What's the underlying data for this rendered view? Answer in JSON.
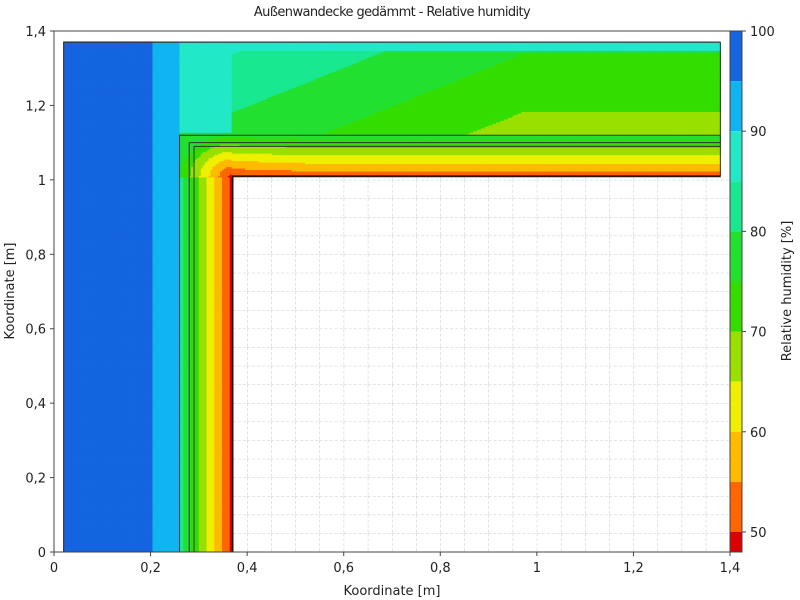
{
  "chart_data": {
    "type": "heatmap",
    "title": "Außenwandecke gedämmt - Relative humidity",
    "xlabel": "Koordinate [m]",
    "ylabel": "Koordinate [m]",
    "xlim": [
      0,
      1.4
    ],
    "ylim": [
      0,
      1.4
    ],
    "x_ticks": [
      "0",
      "0,2",
      "0,4",
      "0,6",
      "0,8",
      "1",
      "1,2",
      "1,4"
    ],
    "y_ticks": [
      "0",
      "0,2",
      "0,4",
      "0,6",
      "0,8",
      "1",
      "1,2",
      "1,4"
    ],
    "grid": true,
    "colorbar": {
      "label": "Relative humidity [%]",
      "ticks": [
        "100",
        "90",
        "80",
        "70",
        "60",
        "50"
      ],
      "min": 48,
      "max": 100,
      "levels": [
        {
          "from": 95,
          "to": 100,
          "color": "#1565e0"
        },
        {
          "from": 90,
          "to": 95,
          "color": "#10b4f0"
        },
        {
          "from": 85,
          "to": 90,
          "color": "#22e8c8"
        },
        {
          "from": 80,
          "to": 85,
          "color": "#19e890"
        },
        {
          "from": 75,
          "to": 80,
          "color": "#22e030"
        },
        {
          "from": 70,
          "to": 75,
          "color": "#33dd00"
        },
        {
          "from": 65,
          "to": 70,
          "color": "#99e000"
        },
        {
          "from": 60,
          "to": 65,
          "color": "#eef000"
        },
        {
          "from": 55,
          "to": 60,
          "color": "#ffbb00"
        },
        {
          "from": 50,
          "to": 55,
          "color": "#ff6600"
        },
        {
          "from": 48,
          "to": 50,
          "color": "#dd0000"
        }
      ]
    },
    "domain": {
      "outer_face_x": 0.02,
      "outer_face_y": 1.37,
      "inner_face_x": 0.37,
      "inner_face_y": 1.01,
      "layer_boundaries": [
        0.26,
        0.28,
        0.29,
        0.37
      ]
    },
    "field": {
      "description_bands": [
        {
          "region": "outer insulation (x 0.02–0.20)",
          "value": 97
        },
        {
          "region": "outer insulation (x 0.20–0.26)",
          "value": 92
        },
        {
          "region": "wall near interior surface",
          "value": 50
        }
      ]
    }
  }
}
